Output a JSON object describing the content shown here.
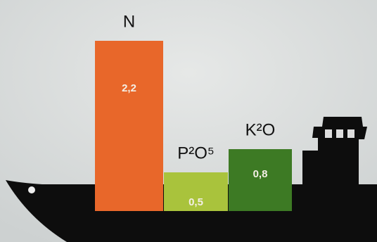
{
  "chart_data": {
    "type": "bar",
    "categories": [
      "N",
      "P²O⁵",
      "K²O"
    ],
    "values": [
      2.2,
      0.5,
      0.8
    ],
    "value_labels": [
      "2,2",
      "0,5",
      "0,8"
    ],
    "colors": [
      "#e8672a",
      "#a9c33c",
      "#3d7a24"
    ]
  }
}
